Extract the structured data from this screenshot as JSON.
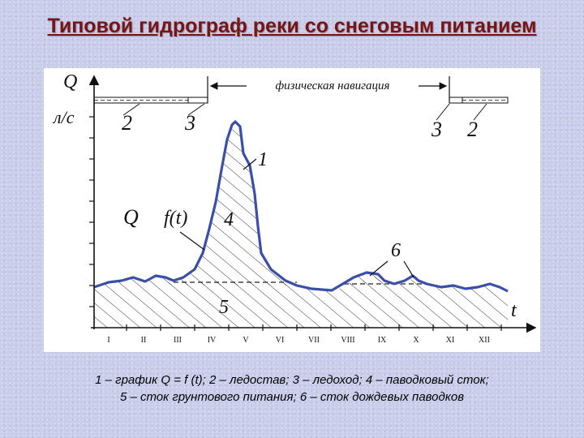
{
  "title": "Типовой гидрограф реки со снеговым питанием",
  "diagram": {
    "y_axis_label": "Q",
    "y_axis_unit": "л/с",
    "x_axis_label": "t",
    "navigation_label": "физическая навигация",
    "curve_label": "Q = f(t)",
    "curve_label_q": "Q",
    "curve_label_f": "f(t)",
    "labels": {
      "n1": "1",
      "n2_left": "2",
      "n3_left": "3",
      "n3_right": "3",
      "n2_right": "2",
      "n4": "4",
      "n5": "5",
      "n6": "6"
    },
    "months": [
      "I",
      "II",
      "III",
      "IV",
      "V",
      "VI",
      "VII",
      "VIII",
      "IX",
      "X",
      "XI",
      "XII"
    ]
  },
  "caption": {
    "line1": "1 – график Q = f (t); 2 – ледостав; 3 – ледоход; 4 – паводковый сток;",
    "line2": "5 – сток грунтового питания; 6 – сток дождевых паводков"
  },
  "colors": {
    "title": "#7a1414",
    "hydrograph_line": "#3a4fa8",
    "background": "#c9cdea"
  }
}
